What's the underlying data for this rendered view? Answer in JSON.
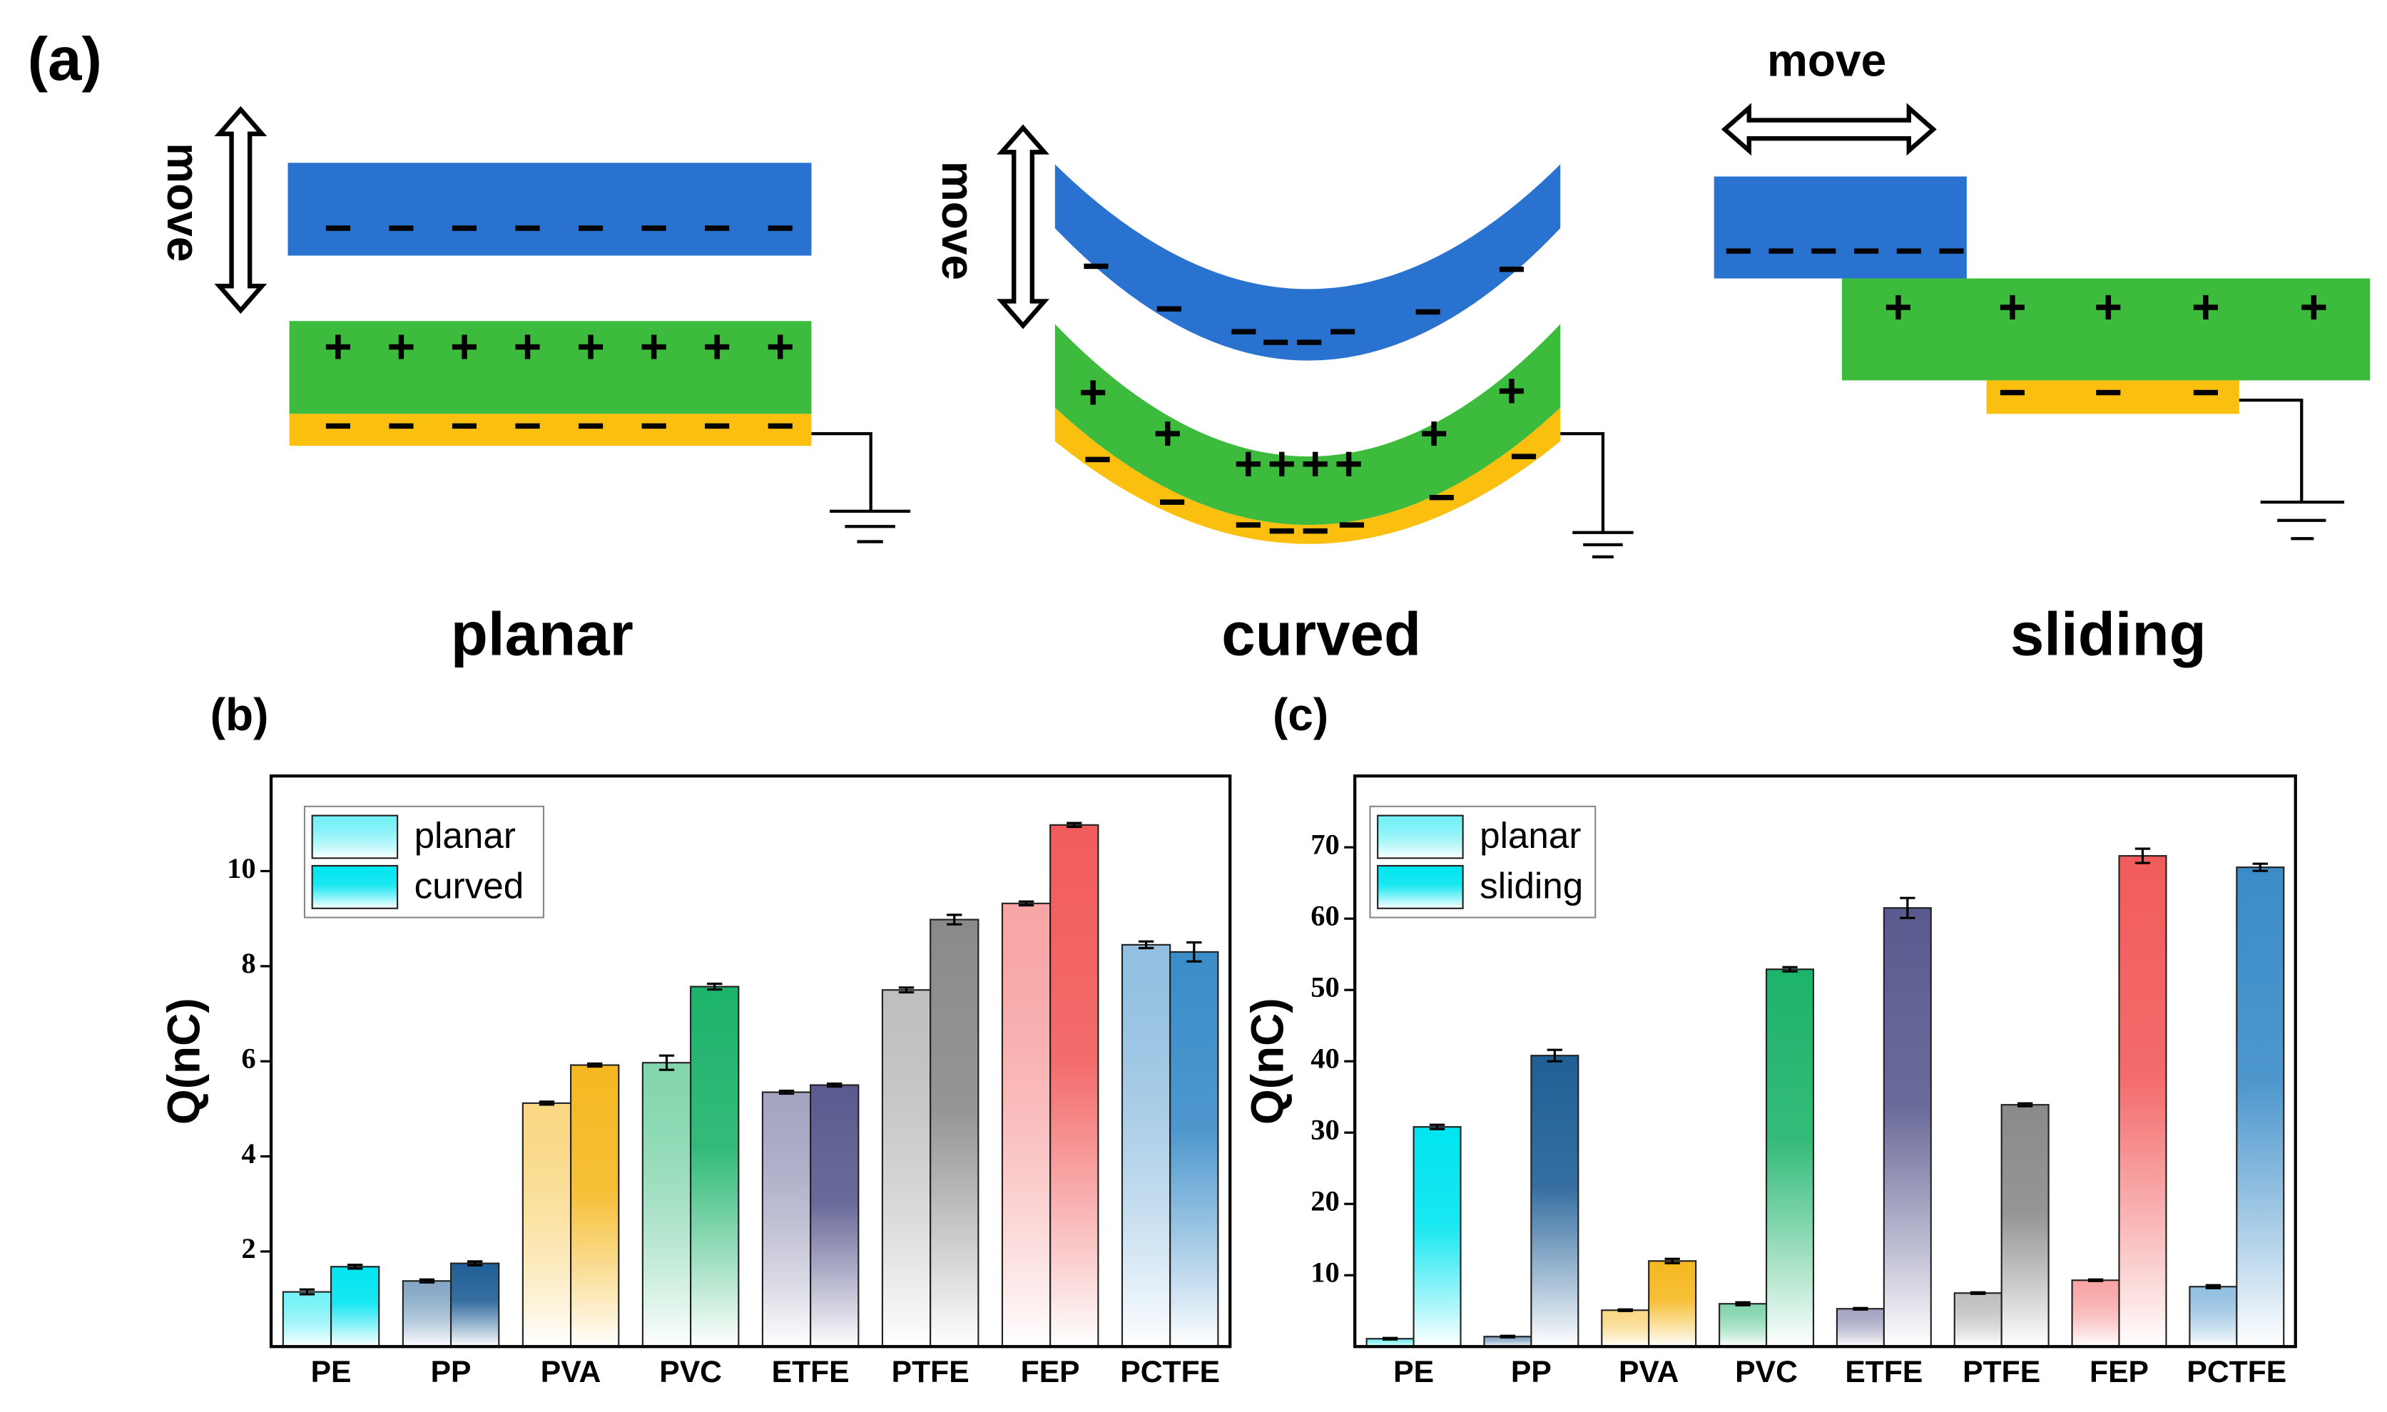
{
  "figure": {
    "panel_label": "(a)",
    "move_labels": [
      "move",
      "move",
      "move"
    ],
    "configs": [
      "planar",
      "curved",
      "sliding"
    ]
  },
  "chart_data": [
    {
      "type": "bar",
      "panel_label": "(b)",
      "ylabel": "Q(nC)",
      "categories": [
        "PE",
        "PP",
        "PVA",
        "PVC",
        "ETFE",
        "PTFE",
        "FEP",
        "PCTFE"
      ],
      "colors": [
        "#00e5f0",
        "#1f5f96",
        "#f5b820",
        "#1db36b",
        "#5a5a8f",
        "#8a8a8a",
        "#f25b5b",
        "#3a8cc8"
      ],
      "series": [
        {
          "name": "planar",
          "color": "#00e5f0",
          "values": [
            1.15,
            1.38,
            5.12,
            5.97,
            5.35,
            7.5,
            9.32,
            8.45
          ],
          "errors": [
            0.05,
            0.03,
            0.03,
            0.15,
            0.03,
            0.05,
            0.04,
            0.07
          ]
        },
        {
          "name": "curved",
          "color": "#00e5f0",
          "values": [
            1.68,
            1.75,
            5.92,
            7.57,
            5.5,
            8.98,
            10.97,
            8.3
          ],
          "errors": [
            0.04,
            0.04,
            0.03,
            0.06,
            0.03,
            0.1,
            0.04,
            0.2
          ]
        }
      ],
      "ylim": [
        0,
        12
      ],
      "yticks": [
        2,
        4,
        6,
        8,
        10
      ],
      "legend": "upper left"
    },
    {
      "type": "bar",
      "panel_label": "(c)",
      "ylabel": "Q(nC)",
      "categories": [
        "PE",
        "PP",
        "PVA",
        "PVC",
        "ETFE",
        "PTFE",
        "FEP",
        "PCTFE"
      ],
      "colors": [
        "#00e5f0",
        "#1f5f96",
        "#f5b820",
        "#1db36b",
        "#5a5a8f",
        "#8a8a8a",
        "#f25b5b",
        "#3a8cc8"
      ],
      "series": [
        {
          "name": "planar",
          "color": "#00e5f0",
          "values": [
            1.1,
            1.4,
            5.1,
            6.0,
            5.3,
            7.5,
            9.3,
            8.4
          ],
          "errors": [
            0.1,
            0.1,
            0.1,
            0.2,
            0.1,
            0.1,
            0.1,
            0.2
          ]
        },
        {
          "name": "sliding",
          "color": "#00e5f0",
          "values": [
            30.8,
            40.8,
            12.0,
            52.9,
            61.5,
            33.9,
            68.8,
            67.2
          ],
          "errors": [
            0.3,
            0.8,
            0.3,
            0.3,
            1.4,
            0.2,
            1.0,
            0.5
          ]
        }
      ],
      "ylim": [
        0,
        80
      ],
      "yticks": [
        10,
        20,
        30,
        40,
        50,
        60,
        70
      ],
      "legend": "upper left"
    }
  ]
}
